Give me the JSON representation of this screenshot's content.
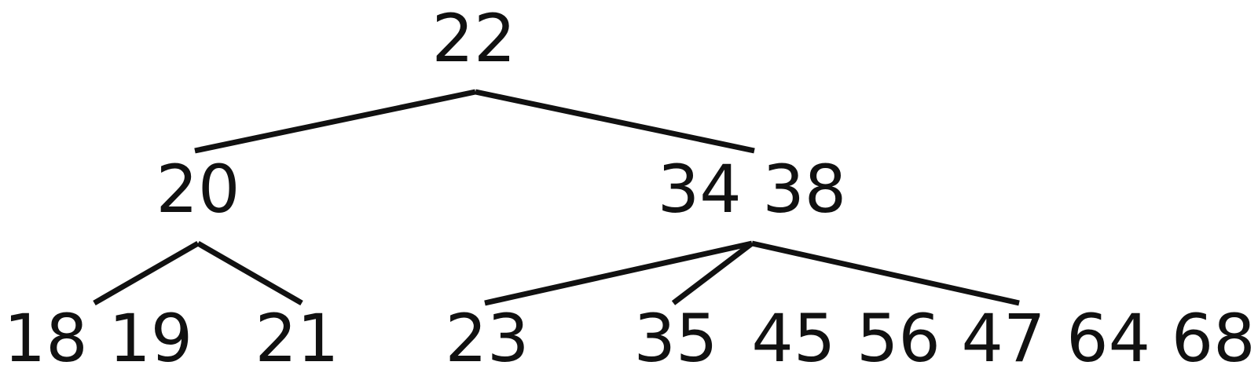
{
  "tree": {
    "root": {
      "label": "22"
    },
    "level1": {
      "left": {
        "label": "20"
      },
      "right": {
        "label": "34 38"
      }
    },
    "level2": {
      "left_a": {
        "label": "18 19"
      },
      "left_b": {
        "label": "21"
      },
      "right_a": {
        "label": "23"
      },
      "right_b": {
        "label": "35"
      },
      "right_c": {
        "label": "45 56 47 64 68"
      }
    }
  },
  "colors": {
    "ink": "#111111",
    "background": "#ffffff"
  }
}
